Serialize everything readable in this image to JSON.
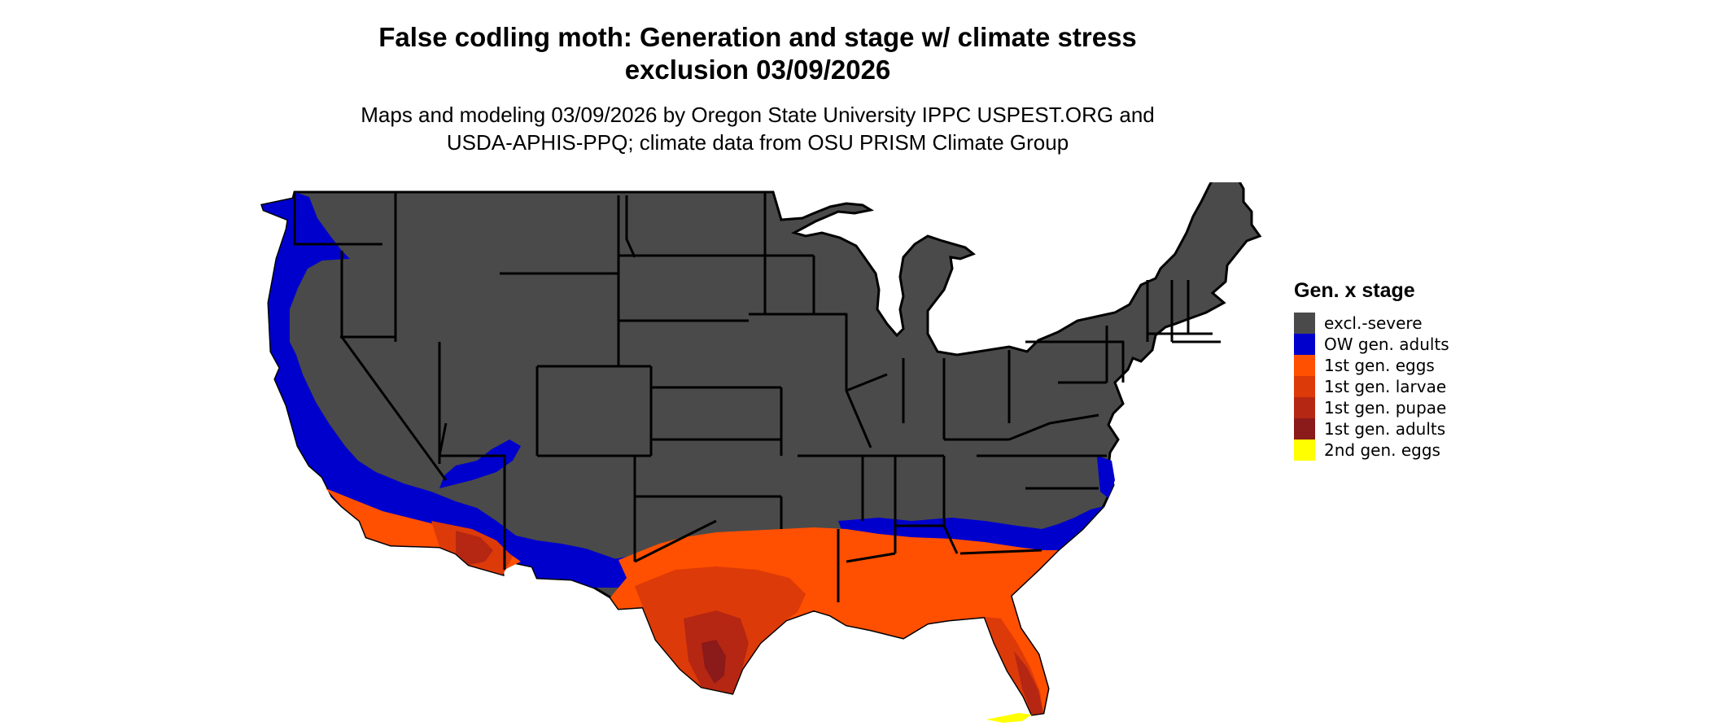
{
  "title": {
    "line1": "False codling moth: Generation and stage w/ climate stress",
    "line2": "exclusion 03/09/2026"
  },
  "subtitle": {
    "line1": "Maps and modeling 03/09/2026 by Oregon State University IPPC USPEST.ORG and",
    "line2": "USDA-APHIS-PPQ; climate data from OSU PRISM Climate Group"
  },
  "legend": {
    "title": "Gen. x stage",
    "items": [
      {
        "label": "excl.-severe",
        "color": "#4a4a4a"
      },
      {
        "label": "OW gen. adults",
        "color": "#0000cd"
      },
      {
        "label": "1st gen. eggs",
        "color": "#ff4f00"
      },
      {
        "label": "1st gen. larvae",
        "color": "#dd3a0a"
      },
      {
        "label": "1st gen. pupae",
        "color": "#b52712"
      },
      {
        "label": "1st gen. adults",
        "color": "#8b1a1a"
      },
      {
        "label": "2nd gen. eggs",
        "color": "#ffff00"
      }
    ]
  },
  "map": {
    "region": "Contiguous United States",
    "border_color": "#000000",
    "zones": [
      {
        "stage": "excl.-severe",
        "color": "#4a4a4a"
      },
      {
        "stage": "OW gen. adults",
        "color": "#0000cd"
      },
      {
        "stage": "1st gen. eggs",
        "color": "#ff4f00"
      },
      {
        "stage": "1st gen. larvae",
        "color": "#dd3a0a"
      },
      {
        "stage": "1st gen. pupae",
        "color": "#b52712"
      },
      {
        "stage": "1st gen. adults",
        "color": "#8b1a1a"
      },
      {
        "stage": "2nd gen. eggs",
        "color": "#ffff00"
      }
    ]
  }
}
